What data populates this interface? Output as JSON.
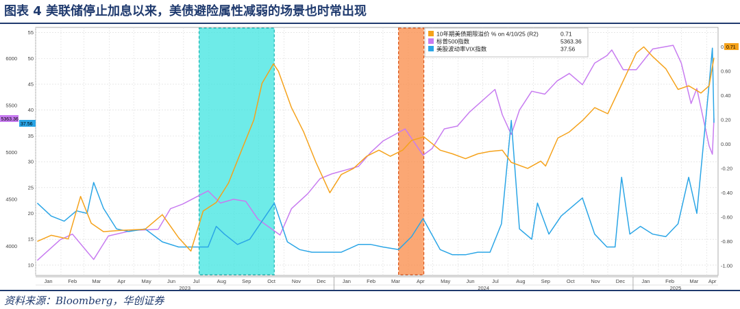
{
  "page": {
    "title": "图表 4  美联储停止加息以来，美债避险属性减弱的场景也时常出现",
    "source": "资料来源：Bloomberg，华创证券"
  },
  "colors": {
    "term_premium": "#f5a21b",
    "sp500": "#c77bf0",
    "vix": "#2aa5e6",
    "cyan_shade": "#3ee4e0",
    "orange_shade": "#f98a45"
  },
  "chart_data": {
    "type": "line",
    "x_range": [
      "2023-01-01",
      "2025-04-15"
    ],
    "month_labels": [
      "Jan",
      "Feb",
      "Mar",
      "Apr",
      "May",
      "Jun",
      "Jul",
      "Aug",
      "Sep",
      "Oct",
      "Nov",
      "Dec",
      "Jan",
      "Feb",
      "Mar",
      "Apr",
      "May",
      "Jun",
      "Jul",
      "Aug",
      "Sep",
      "Oct",
      "Nov",
      "Dec",
      "Jan",
      "Feb",
      "Mar",
      "Apr"
    ],
    "year_labels": [
      "2023",
      "2024",
      "2025"
    ],
    "axes": {
      "vix_left": {
        "min": 8,
        "max": 56,
        "ticks": [
          10,
          15,
          20,
          25,
          30,
          35,
          40,
          45,
          50,
          55
        ]
      },
      "sp500_left": {
        "min": 3690,
        "max": 6330,
        "ticks": [
          4000,
          4500,
          5000,
          5500,
          6000
        ]
      },
      "term_premium_right": {
        "min": -1.08,
        "max": 0.96,
        "ticks": [
          -1.0,
          -0.8,
          -0.6,
          -0.4,
          -0.2,
          0.0,
          0.2,
          0.4,
          0.6,
          0.8
        ]
      }
    },
    "shaded_periods": [
      {
        "start": "2023-07-20",
        "end": "2023-10-20",
        "color": "cyan"
      },
      {
        "start": "2024-03-20",
        "end": "2024-04-20",
        "color": "orange"
      }
    ],
    "legend": [
      {
        "label": "10年期美债期限溢价 % on 4/10/25 (R2)",
        "value": "0.71"
      },
      {
        "label": "标普500指数",
        "value": "5363.36"
      },
      {
        "label": "美股波动率VIX指数",
        "value": "37.56"
      }
    ],
    "last_value_tags": {
      "sp500": "5363.36",
      "vix": "37.56",
      "term_premium": "0.71"
    },
    "series": [
      {
        "name": "10年期美债期限溢价",
        "axis": "term_premium_right",
        "x": [
          "2023-01-03",
          "2023-01-20",
          "2023-02-10",
          "2023-02-25",
          "2023-03-10",
          "2023-03-25",
          "2023-04-15",
          "2023-05-15",
          "2023-06-05",
          "2023-06-25",
          "2023-07-10",
          "2023-07-25",
          "2023-08-10",
          "2023-08-25",
          "2023-09-10",
          "2023-09-25",
          "2023-10-05",
          "2023-10-19",
          "2023-10-25",
          "2023-11-10",
          "2023-11-25",
          "2023-12-10",
          "2023-12-27",
          "2024-01-10",
          "2024-01-25",
          "2024-02-10",
          "2024-02-25",
          "2024-03-10",
          "2024-03-25",
          "2024-04-05",
          "2024-04-20",
          "2024-05-10",
          "2024-05-25",
          "2024-06-10",
          "2024-06-25",
          "2024-07-10",
          "2024-07-25",
          "2024-08-05",
          "2024-08-25",
          "2024-09-10",
          "2024-09-16",
          "2024-10-01",
          "2024-10-15",
          "2024-11-01",
          "2024-11-15",
          "2024-12-01",
          "2024-12-15",
          "2025-01-05",
          "2025-01-14",
          "2025-01-25",
          "2025-02-10",
          "2025-02-25",
          "2025-03-10",
          "2025-03-25",
          "2025-04-04",
          "2025-04-10"
        ],
        "values": [
          -0.8,
          -0.75,
          -0.78,
          -0.43,
          -0.65,
          -0.72,
          -0.71,
          -0.7,
          -0.58,
          -0.77,
          -0.88,
          -0.55,
          -0.48,
          -0.32,
          -0.05,
          0.2,
          0.5,
          0.66,
          0.6,
          0.3,
          0.1,
          -0.15,
          -0.4,
          -0.25,
          -0.2,
          -0.1,
          -0.05,
          -0.1,
          -0.05,
          0.03,
          0.06,
          -0.05,
          -0.08,
          -0.12,
          -0.08,
          -0.06,
          -0.05,
          -0.15,
          -0.2,
          -0.14,
          -0.18,
          0.05,
          0.1,
          0.2,
          0.3,
          0.25,
          0.45,
          0.75,
          0.8,
          0.72,
          0.62,
          0.45,
          0.48,
          0.42,
          0.48,
          0.71
        ]
      },
      {
        "name": "标普500指数",
        "axis": "sp500_left",
        "x": [
          "2023-01-03",
          "2023-01-31",
          "2023-02-15",
          "2023-03-13",
          "2023-03-31",
          "2023-04-30",
          "2023-05-31",
          "2023-06-15",
          "2023-06-30",
          "2023-07-31",
          "2023-08-15",
          "2023-08-31",
          "2023-09-15",
          "2023-09-30",
          "2023-10-27",
          "2023-11-10",
          "2023-11-30",
          "2023-12-15",
          "2023-12-29",
          "2024-01-31",
          "2024-02-15",
          "2024-03-01",
          "2024-03-28",
          "2024-04-19",
          "2024-04-30",
          "2024-05-15",
          "2024-05-31",
          "2024-06-15",
          "2024-07-16",
          "2024-07-25",
          "2024-08-05",
          "2024-08-15",
          "2024-08-30",
          "2024-09-15",
          "2024-09-30",
          "2024-10-15",
          "2024-10-31",
          "2024-11-15",
          "2024-11-30",
          "2024-12-06",
          "2024-12-20",
          "2025-01-05",
          "2025-01-25",
          "2025-02-19",
          "2025-03-01",
          "2025-03-13",
          "2025-03-20",
          "2025-04-04",
          "2025-04-08",
          "2025-04-10"
        ],
        "values": [
          3850,
          4070,
          4130,
          3860,
          4110,
          4170,
          4180,
          4400,
          4450,
          4590,
          4460,
          4500,
          4480,
          4290,
          4120,
          4400,
          4560,
          4720,
          4770,
          4850,
          5000,
          5120,
          5250,
          4970,
          5040,
          5250,
          5280,
          5430,
          5670,
          5400,
          5190,
          5450,
          5650,
          5620,
          5760,
          5840,
          5720,
          5950,
          6030,
          6090,
          5880,
          5880,
          6100,
          6140,
          5950,
          5520,
          5680,
          5070,
          4980,
          5363
        ]
      },
      {
        "name": "美股波动率VIX指数",
        "axis": "vix_left",
        "x": [
          "2023-01-03",
          "2023-01-20",
          "2023-02-05",
          "2023-02-20",
          "2023-03-05",
          "2023-03-13",
          "2023-03-25",
          "2023-04-10",
          "2023-04-25",
          "2023-05-15",
          "2023-06-05",
          "2023-06-25",
          "2023-07-15",
          "2023-07-31",
          "2023-08-10",
          "2023-08-20",
          "2023-09-05",
          "2023-09-20",
          "2023-10-05",
          "2023-10-20",
          "2023-11-05",
          "2023-11-20",
          "2023-12-05",
          "2023-12-20",
          "2024-01-10",
          "2024-01-31",
          "2024-02-15",
          "2024-03-01",
          "2024-03-20",
          "2024-04-05",
          "2024-04-19",
          "2024-05-10",
          "2024-05-25",
          "2024-06-10",
          "2024-06-25",
          "2024-07-10",
          "2024-07-24",
          "2024-08-05",
          "2024-08-15",
          "2024-08-30",
          "2024-09-06",
          "2024-09-20",
          "2024-10-05",
          "2024-10-31",
          "2024-11-15",
          "2024-11-30",
          "2024-12-10",
          "2024-12-18",
          "2024-12-28",
          "2025-01-10",
          "2025-01-25",
          "2025-02-10",
          "2025-02-25",
          "2025-03-10",
          "2025-03-20",
          "2025-04-04",
          "2025-04-08",
          "2025-04-10"
        ],
        "values": [
          22,
          19.5,
          18.5,
          20.5,
          20,
          26,
          21,
          17,
          16.5,
          17,
          14.5,
          13.5,
          13.5,
          13.5,
          17.5,
          16,
          14,
          15,
          18.5,
          22,
          14.5,
          13,
          12.5,
          12.5,
          12.5,
          14,
          14,
          13.5,
          13,
          15.5,
          19,
          13,
          12,
          12,
          12.5,
          12.5,
          18,
          38,
          17,
          15,
          22,
          16,
          19.5,
          23,
          16,
          13.5,
          13.5,
          27,
          16,
          17.5,
          16,
          15.5,
          18,
          27,
          20,
          45,
          52,
          37.56
        ]
      }
    ]
  }
}
